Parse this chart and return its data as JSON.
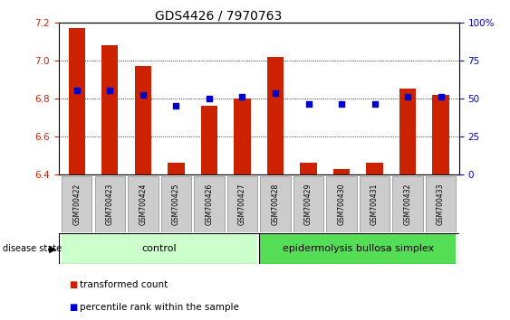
{
  "title": "GDS4426 / 7970763",
  "samples": [
    "GSM700422",
    "GSM700423",
    "GSM700424",
    "GSM700425",
    "GSM700426",
    "GSM700427",
    "GSM700428",
    "GSM700429",
    "GSM700430",
    "GSM700431",
    "GSM700432",
    "GSM700433"
  ],
  "red_values": [
    7.17,
    7.08,
    6.97,
    6.46,
    6.76,
    6.8,
    7.02,
    6.46,
    6.43,
    6.46,
    6.85,
    6.82
  ],
  "blue_values": [
    6.84,
    6.84,
    6.82,
    6.76,
    6.8,
    6.81,
    6.83,
    6.77,
    6.77,
    6.77,
    6.81,
    6.81
  ],
  "ylim_left": [
    6.4,
    7.2
  ],
  "ylim_right": [
    0,
    100
  ],
  "right_ticks": [
    0,
    25,
    50,
    75,
    100
  ],
  "right_tick_labels": [
    "0",
    "25",
    "50",
    "75",
    "100%"
  ],
  "left_ticks": [
    6.4,
    6.6,
    6.8,
    7.0,
    7.2
  ],
  "group1_label": "control",
  "group2_label": "epidermolysis bullosa simplex",
  "group1_indices": [
    0,
    1,
    2,
    3,
    4,
    5
  ],
  "group2_indices": [
    6,
    7,
    8,
    9,
    10,
    11
  ],
  "disease_state_label": "disease state",
  "legend_red": "transformed count",
  "legend_blue": "percentile rank within the sample",
  "bar_color": "#cc2200",
  "dot_color": "#0000cc",
  "bar_width": 0.5,
  "group1_color": "#ccffcc",
  "group2_color": "#55dd55",
  "tick_fontsize": 7.5,
  "label_fontsize": 7.5,
  "title_fontsize": 10
}
